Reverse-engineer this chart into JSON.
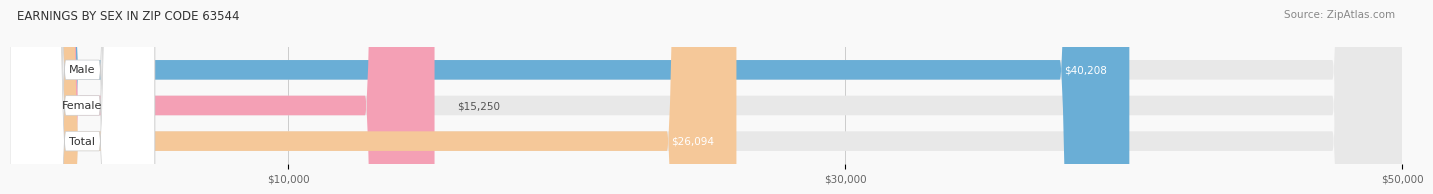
{
  "title": "EARNINGS BY SEX IN ZIP CODE 63544",
  "source": "Source: ZipAtlas.com",
  "categories": [
    "Male",
    "Female",
    "Total"
  ],
  "values": [
    40208,
    15250,
    26094
  ],
  "bar_colors": [
    "#6aaed6",
    "#f4a0b5",
    "#f5c899"
  ],
  "bar_bg_color": "#e8e8e8",
  "value_labels": [
    "$40,208",
    "$15,250",
    "$26,094"
  ],
  "xmin": 0,
  "xmax": 50000,
  "xticks": [
    10000,
    30000,
    50000
  ],
  "xtick_labels": [
    "$10,000",
    "$30,000",
    "$50,000"
  ],
  "figsize": [
    14.06,
    1.96
  ],
  "dpi": 100,
  "title_fontsize": 8.5,
  "label_fontsize": 8,
  "value_fontsize": 7.5,
  "source_fontsize": 7.5,
  "bar_height": 0.55,
  "background_color": "#f9f9f9"
}
